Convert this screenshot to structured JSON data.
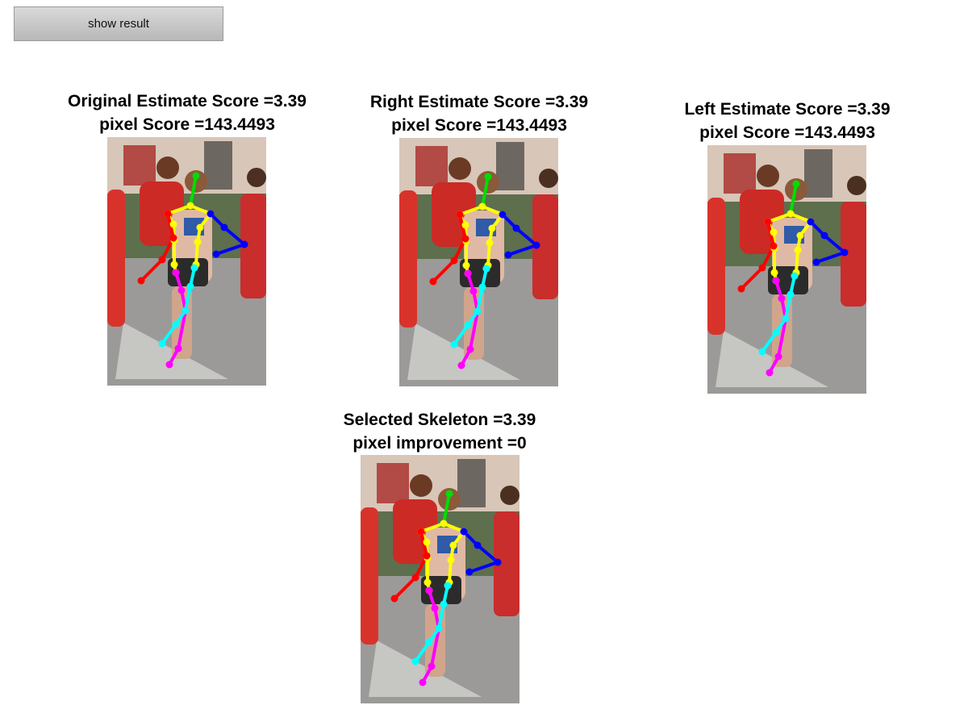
{
  "toolbar": {
    "show_result_label": "show result"
  },
  "panels": {
    "original": {
      "title_line1": "Original Estimate Score =3.39",
      "title_line2": "pixel Score =143.4493"
    },
    "right": {
      "title_line1": "Right Estimate Score =3.39",
      "title_line2": "pixel Score =143.4493"
    },
    "left": {
      "title_line1": "Left Estimate Score =3.39",
      "title_line2": "pixel Score =143.4493"
    },
    "selected": {
      "title_line1": "Selected Skeleton =3.39",
      "title_line2": "pixel improvement =0"
    }
  },
  "skeleton_colors": {
    "head": "#00dd00",
    "torso": "#ffff00",
    "right_arm": "#ff0000",
    "left_arm": "#0000ff",
    "right_leg": "#ff00ff",
    "left_leg": "#00ffff"
  }
}
